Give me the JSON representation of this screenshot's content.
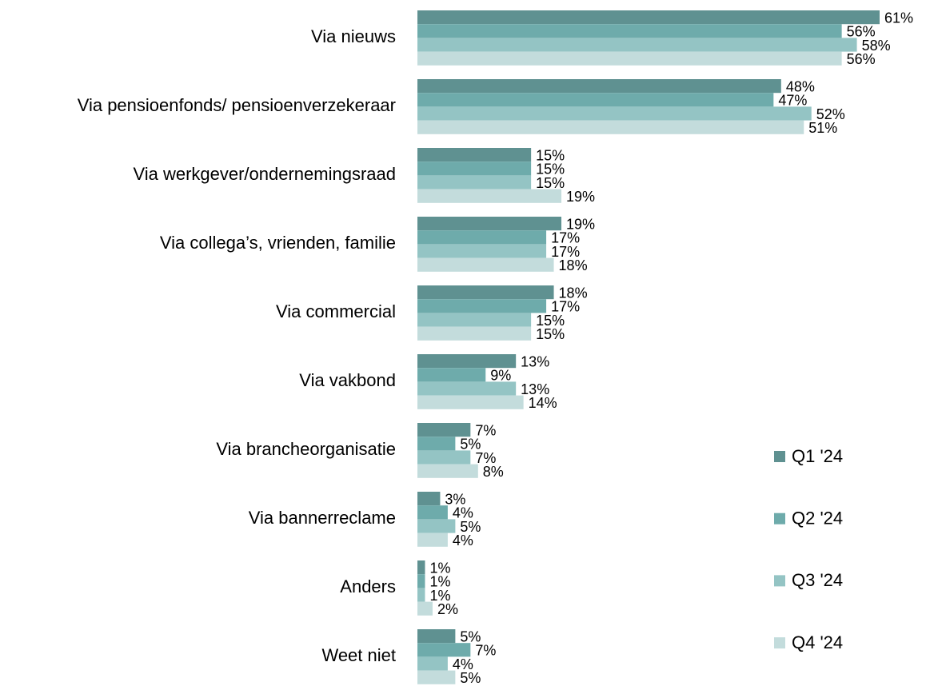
{
  "chart_data": {
    "type": "bar",
    "orientation": "horizontal",
    "categories": [
      "Via nieuws",
      "Via pensioenfonds/ pensioenverzekeraar",
      "Via werkgever/ondernemingsraad",
      "Via collega’s, vrienden, familie",
      "Via commercial",
      "Via vakbond",
      "Via brancheorganisatie",
      "Via bannerreclame",
      "Anders",
      "Weet niet"
    ],
    "series": [
      {
        "name": "Q1 '24",
        "color": "#5f9191",
        "values": [
          61,
          48,
          15,
          19,
          18,
          13,
          7,
          3,
          1,
          5
        ],
        "value_labels": [
          "61%",
          "48%",
          "15%",
          "19%",
          "18%",
          "13%",
          "7%",
          "3%",
          "1%",
          "5%"
        ]
      },
      {
        "name": "Q2 '24",
        "color": "#6eabab",
        "values": [
          56,
          47,
          15,
          17,
          17,
          9,
          5,
          4,
          1,
          7
        ],
        "value_labels": [
          "56%",
          "47%",
          "15%",
          "17%",
          "17%",
          "9%",
          "5%",
          "4%",
          "1%",
          "7%"
        ]
      },
      {
        "name": "Q3 '24",
        "color": "#94c4c4",
        "values": [
          58,
          52,
          15,
          17,
          15,
          13,
          7,
          5,
          1,
          4
        ],
        "value_labels": [
          "58%",
          "52%",
          "15%",
          "17%",
          "15%",
          "13%",
          "7%",
          "5%",
          "1%",
          "4%"
        ]
      },
      {
        "name": "Q4 '24",
        "color": "#c3dcdc",
        "values": [
          56,
          51,
          19,
          18,
          15,
          14,
          8,
          4,
          2,
          5
        ],
        "value_labels": [
          "56%",
          "51%",
          "19%",
          "18%",
          "15%",
          "14%",
          "8%",
          "4%",
          "2%",
          "5%"
        ]
      }
    ],
    "legend": "right"
  }
}
